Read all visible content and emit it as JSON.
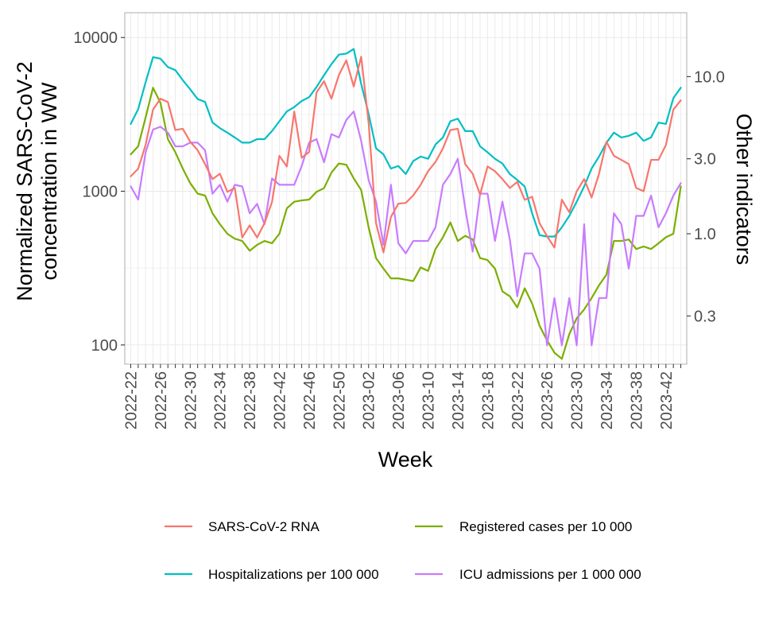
{
  "chart_data": {
    "type": "line",
    "xlabel": "Week",
    "ylabel_lines": [
      "Normalized SARS-CoV-2",
      "concentration in WW"
    ],
    "y2label": "Other indicators",
    "y_scale": "log",
    "y2_scale": "log",
    "ylim": [
      75,
      14500
    ],
    "y2lim": [
      0.148,
      25.5
    ],
    "yticks": [
      {
        "value": 100,
        "label": "100"
      },
      {
        "value": 1000,
        "label": "1000"
      },
      {
        "value": 10000,
        "label": "10000"
      }
    ],
    "y2ticks": [
      {
        "value": 0.3,
        "label": "0.3"
      },
      {
        "value": 1.0,
        "label": "1.0"
      },
      {
        "value": 3.0,
        "label": "3.0"
      },
      {
        "value": 10.0,
        "label": "10.0"
      }
    ],
    "x": [
      "2022-22",
      "2022-23",
      "2022-24",
      "2022-25",
      "2022-26",
      "2022-27",
      "2022-28",
      "2022-29",
      "2022-30",
      "2022-31",
      "2022-32",
      "2022-33",
      "2022-34",
      "2022-35",
      "2022-36",
      "2022-37",
      "2022-38",
      "2022-39",
      "2022-40",
      "2022-41",
      "2022-42",
      "2022-43",
      "2022-44",
      "2022-45",
      "2022-46",
      "2022-47",
      "2022-48",
      "2022-49",
      "2022-50",
      "2022-51",
      "2022-52",
      "2023-01",
      "2023-02",
      "2023-03",
      "2023-04",
      "2023-05",
      "2023-06",
      "2023-07",
      "2023-08",
      "2023-09",
      "2023-10",
      "2023-11",
      "2023-12",
      "2023-13",
      "2023-14",
      "2023-15",
      "2023-16",
      "2023-17",
      "2023-18",
      "2023-19",
      "2023-20",
      "2023-21",
      "2023-22",
      "2023-23",
      "2023-24",
      "2023-25",
      "2023-26",
      "2023-27",
      "2023-28",
      "2023-29",
      "2023-30",
      "2023-31",
      "2023-32",
      "2023-33",
      "2023-34",
      "2023-35",
      "2023-36",
      "2023-37",
      "2023-38",
      "2023-39",
      "2023-40",
      "2023-41",
      "2023-42",
      "2023-43",
      "2023-44"
    ],
    "x_tick_labels": [
      "2022-22",
      "2022-26",
      "2022-30",
      "2022-34",
      "2022-38",
      "2022-42",
      "2022-46",
      "2022-50",
      "2023-02",
      "2023-06",
      "2023-10",
      "2023-14",
      "2023-18",
      "2023-22",
      "2023-26",
      "2023-30",
      "2023-34",
      "2023-38",
      "2023-42"
    ],
    "series": [
      {
        "name": "SARS-CoV-2 RNA",
        "axis": "left",
        "color": "#f8766d",
        "values": [
          1250,
          1400,
          2000,
          3400,
          4000,
          3800,
          2500,
          2550,
          2100,
          1850,
          1500,
          1200,
          1300,
          990,
          1050,
          500,
          600,
          500,
          620,
          850,
          1700,
          1450,
          3300,
          1650,
          1800,
          4400,
          5200,
          4000,
          5700,
          7100,
          4800,
          7500,
          2800,
          620,
          400,
          680,
          830,
          840,
          940,
          1100,
          1350,
          1550,
          1900,
          2500,
          2550,
          1500,
          1300,
          950,
          1450,
          1350,
          1200,
          1050,
          1150,
          880,
          920,
          620,
          510,
          430,
          880,
          730,
          1000,
          1200,
          910,
          1300,
          2100,
          1700,
          1600,
          1500,
          1050,
          1000,
          1600,
          1600,
          2000,
          3400,
          3900
        ]
      },
      {
        "name": "Registered cases per 10 000",
        "axis": "right",
        "color": "#7cae00",
        "values": [
          3.2,
          3.6,
          5.5,
          8.5,
          6.8,
          4.0,
          3.3,
          2.6,
          2.1,
          1.8,
          1.75,
          1.35,
          1.15,
          1.0,
          0.93,
          0.9,
          0.78,
          0.85,
          0.9,
          0.87,
          1.0,
          1.45,
          1.6,
          1.63,
          1.65,
          1.85,
          1.95,
          2.45,
          2.8,
          2.75,
          2.25,
          1.9,
          1.1,
          0.7,
          0.6,
          0.52,
          0.52,
          0.51,
          0.5,
          0.61,
          0.58,
          0.8,
          0.95,
          1.18,
          0.9,
          0.97,
          0.92,
          0.7,
          0.68,
          0.6,
          0.43,
          0.4,
          0.34,
          0.45,
          0.36,
          0.26,
          0.21,
          0.175,
          0.16,
          0.23,
          0.29,
          0.33,
          0.39,
          0.47,
          0.55,
          0.9,
          0.9,
          0.92,
          0.8,
          0.83,
          0.8,
          0.87,
          0.95,
          1.0,
          2.0
        ]
      },
      {
        "name": "Hospitalizations per 100 000",
        "axis": "right",
        "color": "#00bfc4",
        "values": [
          5.0,
          6.2,
          9.2,
          13.3,
          13.0,
          11.5,
          11.0,
          9.5,
          8.3,
          7.2,
          6.9,
          5.1,
          4.7,
          4.4,
          4.1,
          3.8,
          3.8,
          4.0,
          4.0,
          4.5,
          5.2,
          6.0,
          6.4,
          7.0,
          7.4,
          8.6,
          10.2,
          12.0,
          13.8,
          14.0,
          15.0,
          9.0,
          5.8,
          3.5,
          3.2,
          2.6,
          2.7,
          2.4,
          2.9,
          3.1,
          3.0,
          3.7,
          4.1,
          5.2,
          5.4,
          4.5,
          4.5,
          3.6,
          3.3,
          3.0,
          2.8,
          2.4,
          2.2,
          2.0,
          1.35,
          0.98,
          0.96,
          0.96,
          1.1,
          1.3,
          1.6,
          2.0,
          2.6,
          3.1,
          3.8,
          4.4,
          4.1,
          4.2,
          4.4,
          3.9,
          4.1,
          5.1,
          5.0,
          7.3,
          8.5
        ]
      },
      {
        "name": "ICU admissions per 1 000 000",
        "axis": "right",
        "color": "#c77cff",
        "values": [
          2.0,
          1.65,
          3.3,
          4.6,
          4.8,
          4.4,
          3.6,
          3.6,
          3.8,
          3.8,
          3.4,
          1.8,
          2.05,
          1.6,
          2.05,
          2.0,
          1.35,
          1.55,
          1.15,
          2.25,
          2.05,
          2.05,
          2.05,
          2.7,
          3.8,
          4.0,
          2.85,
          4.3,
          4.1,
          5.3,
          6.0,
          3.9,
          2.2,
          1.6,
          0.85,
          2.05,
          0.87,
          0.75,
          0.9,
          0.9,
          0.9,
          1.1,
          2.05,
          2.4,
          3.0,
          1.45,
          0.77,
          1.8,
          1.8,
          0.9,
          1.6,
          0.92,
          0.4,
          0.75,
          0.75,
          0.6,
          0.195,
          0.39,
          0.195,
          0.39,
          0.195,
          1.15,
          0.195,
          0.39,
          0.39,
          1.35,
          1.15,
          0.6,
          1.3,
          1.3,
          1.75,
          1.1,
          1.35,
          1.75,
          2.1
        ]
      }
    ],
    "legend": {
      "position": "bottom",
      "entries": [
        {
          "label": "SARS-CoV-2 RNA",
          "color": "#f8766d"
        },
        {
          "label": "Registered cases per 10 000",
          "color": "#7cae00"
        },
        {
          "label": "Hospitalizations per 100 000",
          "color": "#00bfc4"
        },
        {
          "label": "ICU admissions per 1 000 000",
          "color": "#c77cff"
        }
      ]
    },
    "grid": true
  }
}
